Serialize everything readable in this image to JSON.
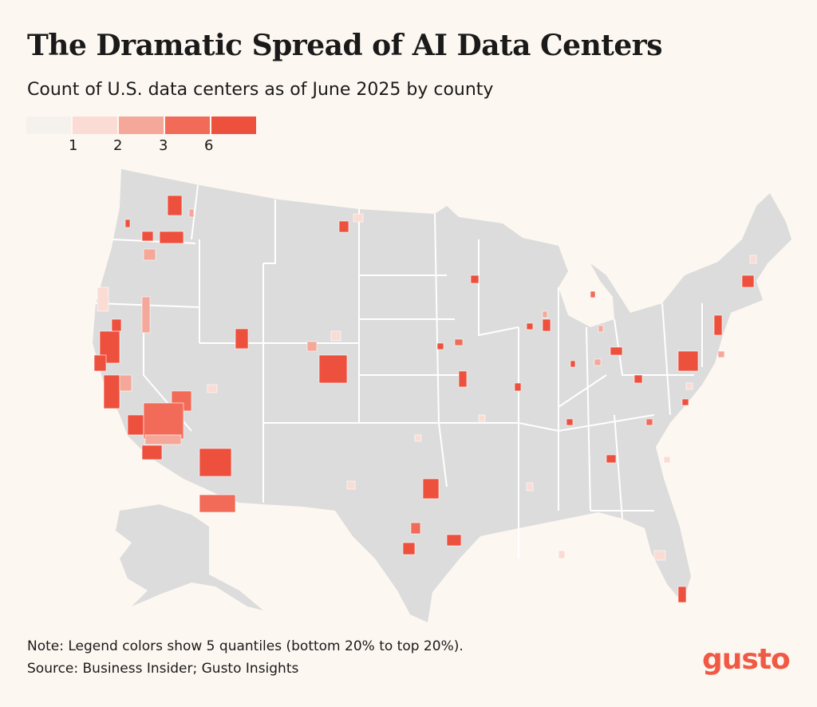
{
  "title": "The Dramatic Spread of AI Data Centers",
  "subtitle": "Count of U.S. data centers as of June 2025 by county",
  "legend": {
    "colors": [
      "#f5f1ec",
      "#fbdcd5",
      "#f5a899",
      "#f26b59",
      "#ee503e"
    ],
    "breaks": [
      "1",
      "2",
      "3",
      "6"
    ]
  },
  "map": {
    "base_color": "#dcdcdc",
    "border_color": "#ffffff"
  },
  "note": "Note: Legend colors show 5 quantiles (bottom 20% to top 20%).",
  "source": "Source: Business Insider; Gusto Insights",
  "logo": "gusto"
}
